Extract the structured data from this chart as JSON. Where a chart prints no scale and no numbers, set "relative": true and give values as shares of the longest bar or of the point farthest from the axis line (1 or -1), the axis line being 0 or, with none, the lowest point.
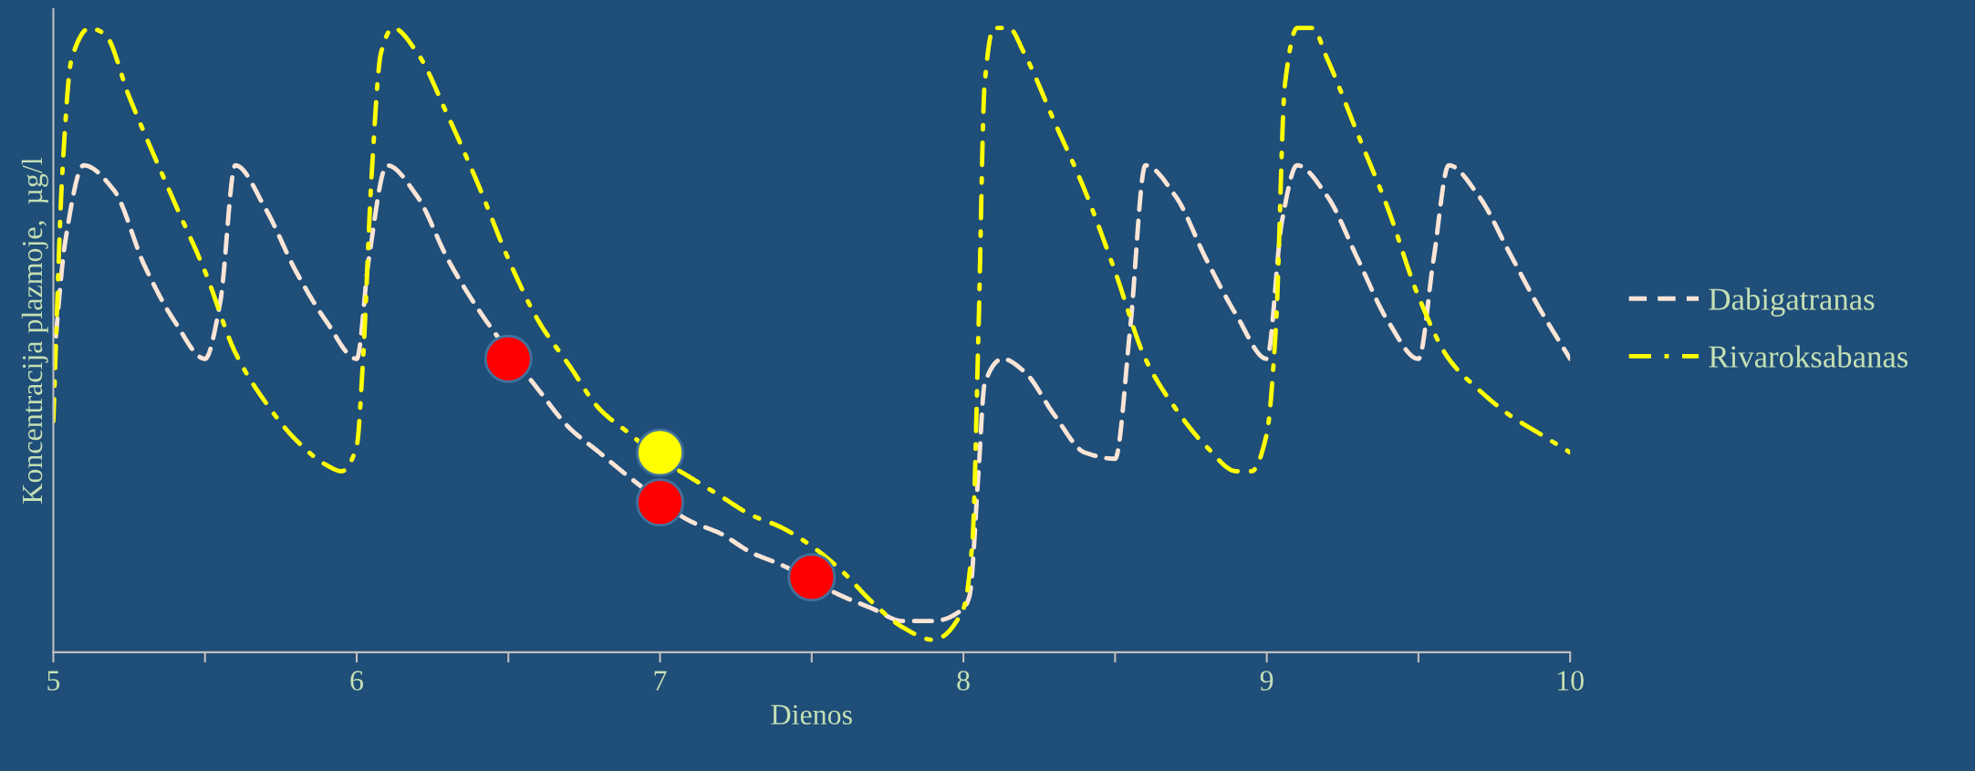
{
  "chart_data": {
    "type": "line",
    "relative": true,
    "xlabel": "Dienos",
    "ylabel": "Koncentracija plazmoje,  µg/l",
    "xlim": [
      5,
      10
    ],
    "xticks": [
      5,
      {
        "value": 5.5,
        "label": null
      },
      6,
      {
        "value": 6.5,
        "label": null
      },
      7,
      {
        "value": 7.5,
        "label": null
      },
      8,
      {
        "value": 8.5,
        "label": null
      },
      9,
      {
        "value": 9.5,
        "label": null
      },
      10
    ],
    "legend": "right",
    "grid": false,
    "series": [
      {
        "name": "Dabigatranas",
        "color": "#fbe5d6",
        "line_style": "dashed",
        "x": [
          5.0,
          5.04,
          5.1,
          5.2,
          5.3,
          5.4,
          5.5,
          5.55,
          5.6,
          5.7,
          5.8,
          5.9,
          6.0,
          6.04,
          6.1,
          6.2,
          6.3,
          6.4,
          6.6,
          6.7,
          6.8,
          6.9,
          7.1,
          7.2,
          7.3,
          7.4,
          7.6,
          7.7,
          7.8,
          7.9,
          8.0,
          8.02,
          8.05,
          8.07,
          8.13,
          8.2,
          8.3,
          8.4,
          8.5,
          8.55,
          8.6,
          8.7,
          8.8,
          8.9,
          9.0,
          9.05,
          9.1,
          9.2,
          9.3,
          9.4,
          9.5,
          9.55,
          9.6,
          9.7,
          9.8,
          9.9,
          10.0
        ],
        "values": [
          0.46,
          0.66,
          0.78,
          0.74,
          0.62,
          0.53,
          0.47,
          0.56,
          0.78,
          0.71,
          0.61,
          0.53,
          0.47,
          0.63,
          0.78,
          0.73,
          0.63,
          0.55,
          0.42,
          0.36,
          0.32,
          0.28,
          0.21,
          0.19,
          0.16,
          0.14,
          0.09,
          0.07,
          0.05,
          0.05,
          0.07,
          0.09,
          0.29,
          0.43,
          0.47,
          0.45,
          0.38,
          0.32,
          0.31,
          0.52,
          0.78,
          0.73,
          0.63,
          0.54,
          0.47,
          0.69,
          0.78,
          0.73,
          0.63,
          0.53,
          0.47,
          0.63,
          0.78,
          0.73,
          0.64,
          0.55,
          0.47
        ]
      },
      {
        "name": "Rivaroksabanas",
        "color": "#ffff00",
        "line_style": "dashdot",
        "x": [
          5.0,
          5.03,
          5.06,
          5.12,
          5.17,
          5.25,
          5.4,
          5.5,
          5.6,
          5.7,
          5.8,
          5.9,
          5.95,
          6.0,
          6.02,
          6.05,
          6.08,
          6.12,
          6.2,
          6.3,
          6.4,
          6.5,
          6.6,
          6.7,
          6.8,
          6.9,
          7.0,
          7.1,
          7.2,
          7.3,
          7.4,
          7.5,
          7.6,
          7.7,
          7.8,
          7.9,
          8.0,
          8.03,
          8.05,
          8.07,
          8.1,
          8.15,
          8.2,
          8.3,
          8.4,
          8.5,
          8.6,
          8.7,
          8.8,
          8.9,
          8.95,
          9.0,
          9.03,
          9.06,
          9.1,
          9.15,
          9.2,
          9.3,
          9.4,
          9.5,
          9.6,
          9.7,
          9.8,
          9.9,
          10.0
        ],
        "values": [
          0.37,
          0.77,
          0.95,
          1.0,
          0.99,
          0.89,
          0.72,
          0.61,
          0.48,
          0.4,
          0.34,
          0.3,
          0.29,
          0.33,
          0.46,
          0.77,
          0.96,
          1.0,
          0.96,
          0.86,
          0.75,
          0.63,
          0.53,
          0.46,
          0.39,
          0.35,
          0.31,
          0.28,
          0.25,
          0.22,
          0.2,
          0.17,
          0.13,
          0.08,
          0.04,
          0.02,
          0.07,
          0.18,
          0.52,
          0.91,
          1.0,
          1.0,
          0.96,
          0.85,
          0.74,
          0.61,
          0.47,
          0.39,
          0.33,
          0.29,
          0.29,
          0.35,
          0.52,
          0.91,
          1.0,
          1.0,
          0.95,
          0.83,
          0.71,
          0.57,
          0.47,
          0.42,
          0.38,
          0.35,
          0.32
        ]
      },
      {
        "type": "scatter",
        "color": "#ff0000",
        "x": [
          6.5,
          7.0,
          7.5
        ],
        "values": [
          0.47,
          0.24,
          0.12
        ]
      },
      {
        "type": "scatter",
        "color": "#ffff00",
        "x": [
          7.0
        ],
        "values": [
          0.32
        ]
      }
    ]
  }
}
